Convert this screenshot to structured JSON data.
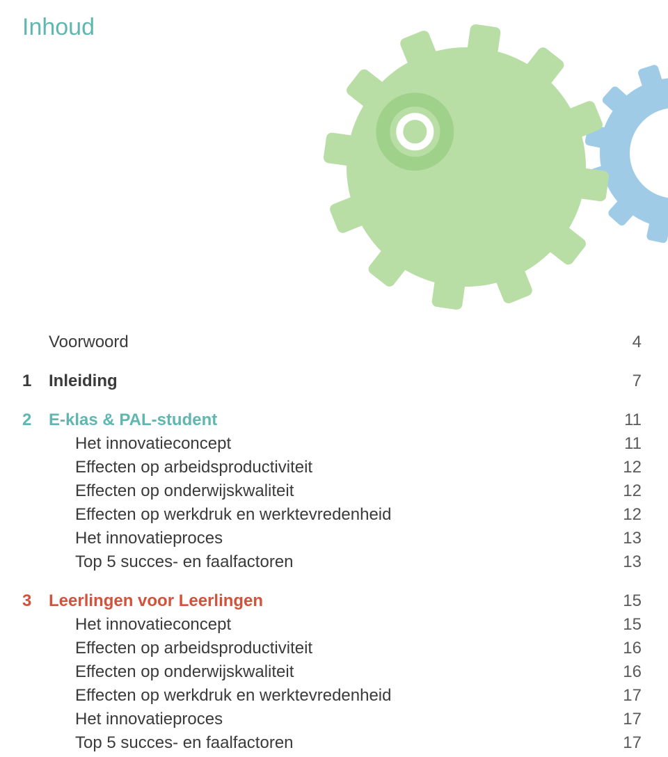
{
  "title": "Inhoud",
  "colors": {
    "teal": "#5fb7b0",
    "green_gear": "#b8dea6",
    "blue_gear": "#9fcbe7",
    "inner_ring": "#a0d18b",
    "center_ring": "#ffffff",
    "red": "#d2533c",
    "text_default": "#3a3a3a",
    "page_num": "#5a5a5a"
  },
  "toc": [
    {
      "num": "",
      "label": "Voorwoord",
      "page": "4",
      "color": "text_default",
      "heading": false,
      "spacer_after": true
    },
    {
      "num": "1",
      "label": "Inleiding",
      "page": "7",
      "color": "text_default",
      "heading": true,
      "spacer_after": true
    },
    {
      "num": "2",
      "label": "E-klas & PAL-student",
      "page": "11",
      "color": "teal",
      "heading": true
    },
    {
      "num": "",
      "label": "Het innovatieconcept",
      "page": "11",
      "color": "text_default",
      "indent": true
    },
    {
      "num": "",
      "label": "Effecten op arbeidsproductiviteit",
      "page": "12",
      "color": "text_default",
      "indent": true
    },
    {
      "num": "",
      "label": "Effecten op onderwijskwaliteit",
      "page": "12",
      "color": "text_default",
      "indent": true
    },
    {
      "num": "",
      "label": "Effecten op werkdruk en werktevredenheid",
      "page": "12",
      "color": "text_default",
      "indent": true
    },
    {
      "num": "",
      "label": "Het innovatieproces",
      "page": "13",
      "color": "text_default",
      "indent": true
    },
    {
      "num": "",
      "label": "Top 5 succes- en faalfactoren",
      "page": "13",
      "color": "text_default",
      "indent": true,
      "spacer_after": true
    },
    {
      "num": "3",
      "label": "Leerlingen voor Leerlingen",
      "page": "15",
      "color": "red",
      "heading": true
    },
    {
      "num": "",
      "label": "Het innovatieconcept",
      "page": "15",
      "color": "text_default",
      "indent": true
    },
    {
      "num": "",
      "label": "Effecten op arbeidsproductiviteit",
      "page": "16",
      "color": "text_default",
      "indent": true
    },
    {
      "num": "",
      "label": "Effecten op onderwijskwaliteit",
      "page": "16",
      "color": "text_default",
      "indent": true
    },
    {
      "num": "",
      "label": "Effecten op werkdruk en werktevredenheid",
      "page": "17",
      "color": "text_default",
      "indent": true
    },
    {
      "num": "",
      "label": "Het innovatieproces",
      "page": "17",
      "color": "text_default",
      "indent": true
    },
    {
      "num": "",
      "label": "Top 5 succes- en faalfactoren",
      "page": "17",
      "color": "text_default",
      "indent": true
    }
  ]
}
